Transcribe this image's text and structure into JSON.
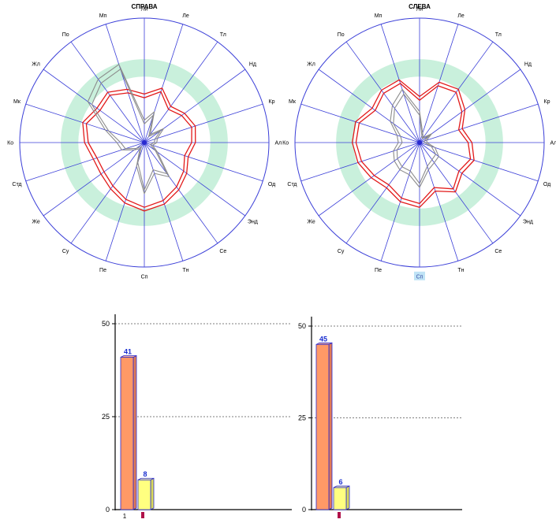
{
  "chart_data": [
    {
      "type": "radar",
      "title": "СПРАВА",
      "axes": [
        "Ли",
        "Ле",
        "Тл",
        "Нд",
        "Кр",
        "Ал",
        "Од",
        "Энд",
        "Се",
        "Тн",
        "Сп",
        "Пе",
        "Су",
        "Же",
        "Стд",
        "Ко",
        "Мк",
        "Жл",
        "По",
        "Мп"
      ],
      "rmax": 10,
      "band": [
        5.3,
        6.7
      ],
      "highlight_axis": "",
      "series": [
        {
          "color": "#e21a1a",
          "values": [
            3.9,
            4.6,
            3.6,
            4.0,
            4.3,
            4.1,
            3.7,
            4.2,
            4.7,
            5.2,
            5.5,
            5.1,
            4.6,
            4.3,
            4.3,
            4.8,
            5.2,
            4.7,
            5.0,
            4.5
          ]
        },
        {
          "color": "#e21a1a",
          "values": [
            3.6,
            4.3,
            3.3,
            3.7,
            4.0,
            3.8,
            3.4,
            3.9,
            4.4,
            4.9,
            5.2,
            4.8,
            4.3,
            4.0,
            4.0,
            4.5,
            4.9,
            4.4,
            4.7,
            4.2
          ]
        },
        {
          "color": "#8c8c8c",
          "values": [
            1.8,
            2.6,
            0.8,
            1.9,
            1.1,
            1.0,
            0.7,
            1.3,
            3.4,
            2.6,
            4.1,
            2.0,
            0.6,
            1.0,
            1.9,
            2.2,
            3.3,
            5.6,
            6.3,
            6.6
          ]
        },
        {
          "color": "#8c8c8c",
          "values": [
            1.5,
            2.3,
            0.6,
            1.6,
            0.9,
            0.8,
            0.5,
            1.1,
            3.1,
            2.3,
            3.8,
            1.7,
            0.4,
            0.8,
            1.6,
            1.9,
            3.0,
            5.2,
            5.9,
            6.2
          ]
        }
      ]
    },
    {
      "type": "radar",
      "title": "СЛЕВА",
      "axes": [
        "Ли",
        "Ле",
        "Тл",
        "Нд",
        "Кр",
        "Ал",
        "Од",
        "Энд",
        "Се",
        "Тн",
        "Сп",
        "Пе",
        "Су",
        "Же",
        "Стд",
        "Ко",
        "Мк",
        "Жл",
        "По",
        "Мп"
      ],
      "rmax": 10,
      "band": [
        5.3,
        6.7
      ],
      "highlight_axis": "Сп",
      "series": [
        {
          "color": "#e21a1a",
          "values": [
            3.7,
            5.1,
            5.3,
            4.5,
            3.6,
            4.2,
            4.6,
            4.2,
            4.9,
            4.1,
            5.2,
            5.0,
            4.5,
            4.8,
            5.2,
            5.4,
            5.4,
            4.7,
            5.2,
            5.3
          ]
        },
        {
          "color": "#e21a1a",
          "values": [
            3.4,
            4.8,
            5.0,
            4.2,
            3.3,
            3.9,
            4.3,
            3.9,
            4.6,
            3.8,
            4.9,
            4.7,
            4.2,
            4.5,
            4.9,
            5.1,
            5.1,
            4.4,
            4.9,
            5.0
          ]
        },
        {
          "color": "#8c8c8c",
          "values": [
            2.5,
            0.8,
            0.5,
            1.2,
            0.6,
            0.6,
            1.3,
            1.9,
            2.0,
            2.3,
            3.6,
            2.7,
            2.7,
            2.5,
            2.2,
            1.7,
            1.9,
            2.9,
            3.7,
            4.5
          ]
        },
        {
          "color": "#8c8c8c",
          "values": [
            2.2,
            0.6,
            0.4,
            1.0,
            0.4,
            0.4,
            1.0,
            1.6,
            1.7,
            2.0,
            3.3,
            2.4,
            2.4,
            2.2,
            1.9,
            1.4,
            1.6,
            2.6,
            3.4,
            4.1
          ]
        }
      ]
    },
    {
      "type": "bar",
      "ylim": [
        0,
        50
      ],
      "yticks": [
        0,
        25,
        50
      ],
      "x_tick_label": "1",
      "bars": [
        {
          "value": 41,
          "label": "41",
          "color": "#ff9966"
        },
        {
          "value": 8,
          "label": "8",
          "color": "#ffff80"
        }
      ]
    },
    {
      "type": "bar",
      "ylim": [
        0,
        50
      ],
      "yticks": [
        0,
        25,
        50
      ],
      "x_tick_label": "",
      "bars": [
        {
          "value": 45,
          "label": "45",
          "color": "#ff9966"
        },
        {
          "value": 6,
          "label": "6",
          "color": "#ffff80"
        }
      ]
    }
  ]
}
